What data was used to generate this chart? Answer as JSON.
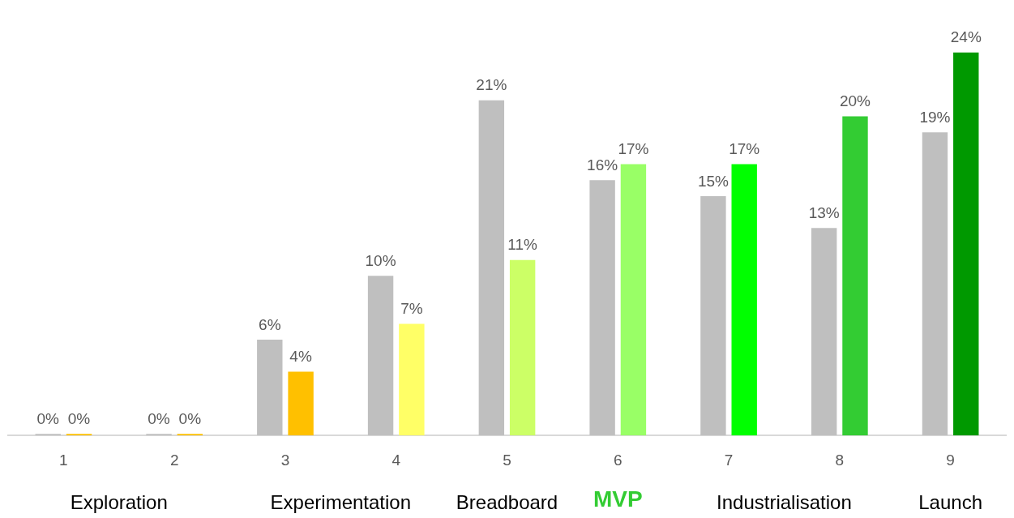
{
  "chart_data": {
    "type": "bar",
    "categories": [
      "1",
      "2",
      "3",
      "4",
      "5",
      "6",
      "7",
      "8",
      "9"
    ],
    "series": [
      {
        "color": "#bfbfbf",
        "values": [
          0,
          0,
          6,
          10,
          21,
          16,
          15,
          13,
          19
        ],
        "value_labels": [
          "0%",
          "0%",
          "6%",
          "10%",
          "21%",
          "16%",
          "15%",
          "13%",
          "19%"
        ]
      },
      {
        "colors": [
          "#ffc000",
          "#ffc000",
          "#ffc000",
          "#ffff66",
          "#ccff66",
          "#99ff66",
          "#00ff00",
          "#33cc33",
          "#009900"
        ],
        "values": [
          0,
          0,
          4,
          7,
          11,
          17,
          17,
          20,
          24
        ],
        "value_labels": [
          "0%",
          "0%",
          "4%",
          "7%",
          "11%",
          "17%",
          "17%",
          "20%",
          "24%"
        ]
      }
    ],
    "annotations": [
      "Exploration",
      "Experimentation",
      "Breadboard",
      "MVP",
      "Industrialisation",
      "Launch"
    ],
    "grid": false,
    "legend": false
  }
}
